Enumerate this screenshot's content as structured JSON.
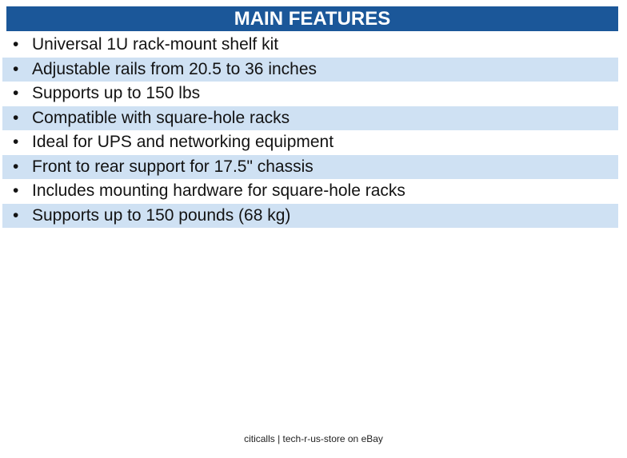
{
  "header": {
    "title": "MAIN FEATURES",
    "background_color": "#1B5799",
    "text_color": "#ffffff"
  },
  "features": {
    "bullet": "•",
    "alt_row_color": "#CFE1F3",
    "items": [
      "Universal 1U rack-mount shelf kit",
      "Adjustable rails from 20.5 to 36 inches",
      "Supports up to 150 lbs",
      "Compatible with square-hole racks",
      "Ideal for UPS and networking equipment",
      "Front to rear support for 17.5\" chassis",
      "Includes mounting hardware for square-hole racks",
      "Supports up to 150 pounds (68 kg)"
    ]
  },
  "footer": {
    "text": "citicalls | tech-r-us-store on eBay"
  }
}
